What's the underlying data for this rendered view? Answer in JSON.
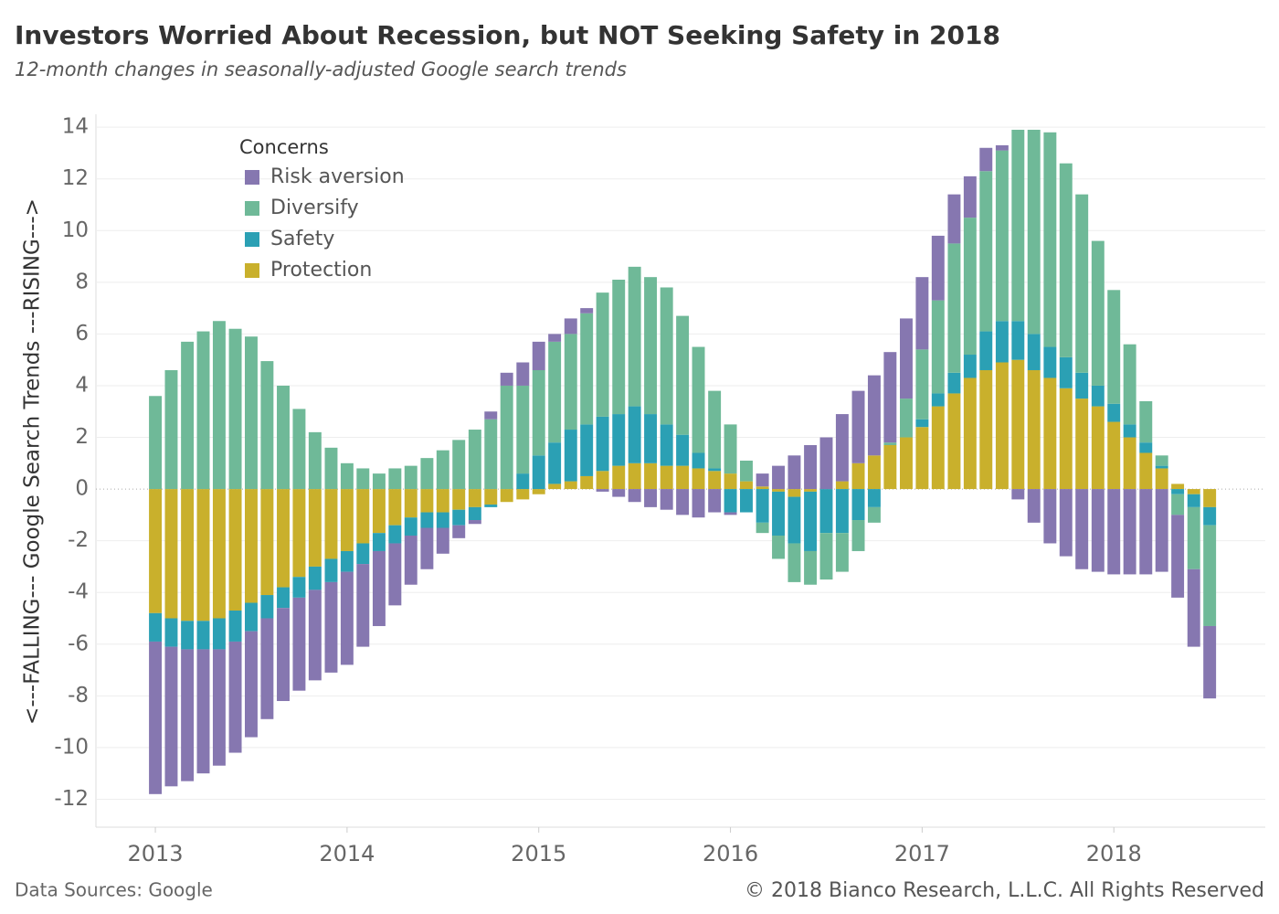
{
  "chart_data": {
    "type": "stacked_bar",
    "title": "Investors Worried About Recession, but NOT Seeking Safety in 2018",
    "subtitle": "12-month changes in seasonally-adjusted Google search trends",
    "y_label": "<---FALLING--- Google Search Trends ---RISING--->",
    "legend_title": "Concerns",
    "source": "Data Sources: Google",
    "copyright": "© 2018 Bianco Research, L.L.C. All Rights Reserved",
    "x": [
      2013.0,
      2013.083,
      2013.167,
      2013.25,
      2013.333,
      2013.417,
      2013.5,
      2013.583,
      2013.667,
      2013.75,
      2013.833,
      2013.917,
      2014.0,
      2014.083,
      2014.167,
      2014.25,
      2014.333,
      2014.417,
      2014.5,
      2014.583,
      2014.667,
      2014.75,
      2014.833,
      2014.917,
      2015.0,
      2015.083,
      2015.167,
      2015.25,
      2015.333,
      2015.417,
      2015.5,
      2015.583,
      2015.667,
      2015.75,
      2015.833,
      2015.917,
      2016.0,
      2016.083,
      2016.167,
      2016.25,
      2016.333,
      2016.417,
      2016.5,
      2016.583,
      2016.667,
      2016.75,
      2016.833,
      2016.917,
      2017.0,
      2017.083,
      2017.167,
      2017.25,
      2017.333,
      2017.417,
      2017.5,
      2017.583,
      2017.667,
      2017.75,
      2017.833,
      2017.917,
      2018.0,
      2018.083,
      2018.167,
      2018.25,
      2018.333,
      2018.417,
      2018.5
    ],
    "series": [
      {
        "name": "Risk aversion",
        "color": "#8677b0",
        "values": [
          -5.9,
          -5.4,
          -5.1,
          -4.8,
          -4.5,
          -4.3,
          -4.1,
          -3.9,
          -3.6,
          -3.6,
          -3.5,
          -3.5,
          -3.6,
          -3.2,
          -2.9,
          -2.4,
          -1.9,
          -1.6,
          -1.0,
          -0.5,
          -0.15,
          0.3,
          0.5,
          0.9,
          1.1,
          0.3,
          0.6,
          0.2,
          -0.1,
          -0.3,
          -0.5,
          -0.7,
          -0.8,
          -1.0,
          -1.1,
          -0.9,
          -0.1,
          0,
          0.5,
          0.9,
          1.3,
          1.7,
          2.0,
          2.6,
          2.8,
          3.1,
          3.5,
          3.1,
          2.8,
          2.5,
          1.9,
          1.6,
          0.9,
          0.2,
          -0.4,
          -1.3,
          -2.1,
          -2.6,
          -3.1,
          -3.2,
          -3.3,
          -3.3,
          -3.3,
          -3.2,
          -3.2,
          -3.0,
          -2.8
        ]
      },
      {
        "name": "Diversify",
        "color": "#6fb998",
        "values": [
          3.6,
          4.6,
          5.7,
          6.1,
          6.5,
          6.2,
          5.9,
          4.95,
          4.0,
          3.1,
          2.2,
          1.6,
          1.0,
          0.8,
          0.6,
          0.8,
          0.9,
          1.2,
          1.5,
          1.9,
          2.3,
          2.7,
          4.0,
          3.4,
          3.3,
          3.9,
          3.7,
          4.3,
          4.8,
          5.2,
          5.4,
          5.3,
          5.3,
          4.6,
          4.1,
          3.0,
          1.9,
          0.8,
          -0.4,
          -0.9,
          -1.5,
          -1.3,
          -1.8,
          -1.5,
          -1.2,
          -0.6,
          0.1,
          1.5,
          2.7,
          3.6,
          5.0,
          5.3,
          6.2,
          6.6,
          7.4,
          7.9,
          8.3,
          7.5,
          6.9,
          5.6,
          4.4,
          3.1,
          1.6,
          0.4,
          -0.8,
          -2.4,
          -3.9
        ]
      },
      {
        "name": "Safety",
        "color": "#2ba0b4",
        "values": [
          -1.1,
          -1.1,
          -1.1,
          -1.1,
          -1.2,
          -1.2,
          -1.1,
          -0.9,
          -0.8,
          -0.8,
          -0.9,
          -0.9,
          -0.8,
          -0.8,
          -0.7,
          -0.7,
          -0.7,
          -0.6,
          -0.6,
          -0.6,
          -0.5,
          -0.1,
          0,
          0.6,
          1.3,
          1.6,
          2.0,
          2.0,
          2.1,
          2.0,
          2.2,
          1.9,
          1.6,
          1.2,
          0.6,
          0.1,
          -0.9,
          -0.9,
          -1.3,
          -1.7,
          -1.8,
          -2.3,
          -1.7,
          -1.7,
          -1.2,
          -0.7,
          0,
          0,
          0.3,
          0.5,
          0.8,
          0.9,
          1.5,
          1.6,
          1.5,
          1.4,
          1.2,
          1.2,
          1.0,
          0.8,
          0.7,
          0.5,
          0.4,
          0.1,
          -0.2,
          -0.5,
          -0.7
        ]
      },
      {
        "name": "Protection",
        "color": "#c9b02c",
        "values": [
          -4.8,
          -5.0,
          -5.1,
          -5.1,
          -5.0,
          -4.7,
          -4.4,
          -4.1,
          -3.8,
          -3.4,
          -3.0,
          -2.7,
          -2.4,
          -2.1,
          -1.7,
          -1.4,
          -1.1,
          -0.9,
          -0.9,
          -0.8,
          -0.7,
          -0.6,
          -0.5,
          -0.4,
          -0.2,
          0.2,
          0.3,
          0.5,
          0.7,
          0.9,
          1.0,
          1.0,
          0.9,
          0.9,
          0.8,
          0.7,
          0.6,
          0.3,
          0.1,
          -0.1,
          -0.3,
          -0.1,
          0,
          0.3,
          1.0,
          1.3,
          1.7,
          2.0,
          2.4,
          3.2,
          3.7,
          4.3,
          4.6,
          4.9,
          5.0,
          4.6,
          4.3,
          3.9,
          3.5,
          3.2,
          2.6,
          2.0,
          1.4,
          0.8,
          0.2,
          -0.2,
          -0.7
        ]
      }
    ],
    "xlim": [
      2012.69,
      2018.79
    ],
    "xticks": [
      2013,
      2014,
      2015,
      2016,
      2017,
      2018
    ],
    "ylim": [
      -13.08,
      14.5
    ],
    "yticks": [
      -12,
      -10,
      -8,
      -6,
      -4,
      -2,
      0,
      2,
      4,
      6,
      8,
      10,
      12,
      14
    ],
    "grid": true
  }
}
